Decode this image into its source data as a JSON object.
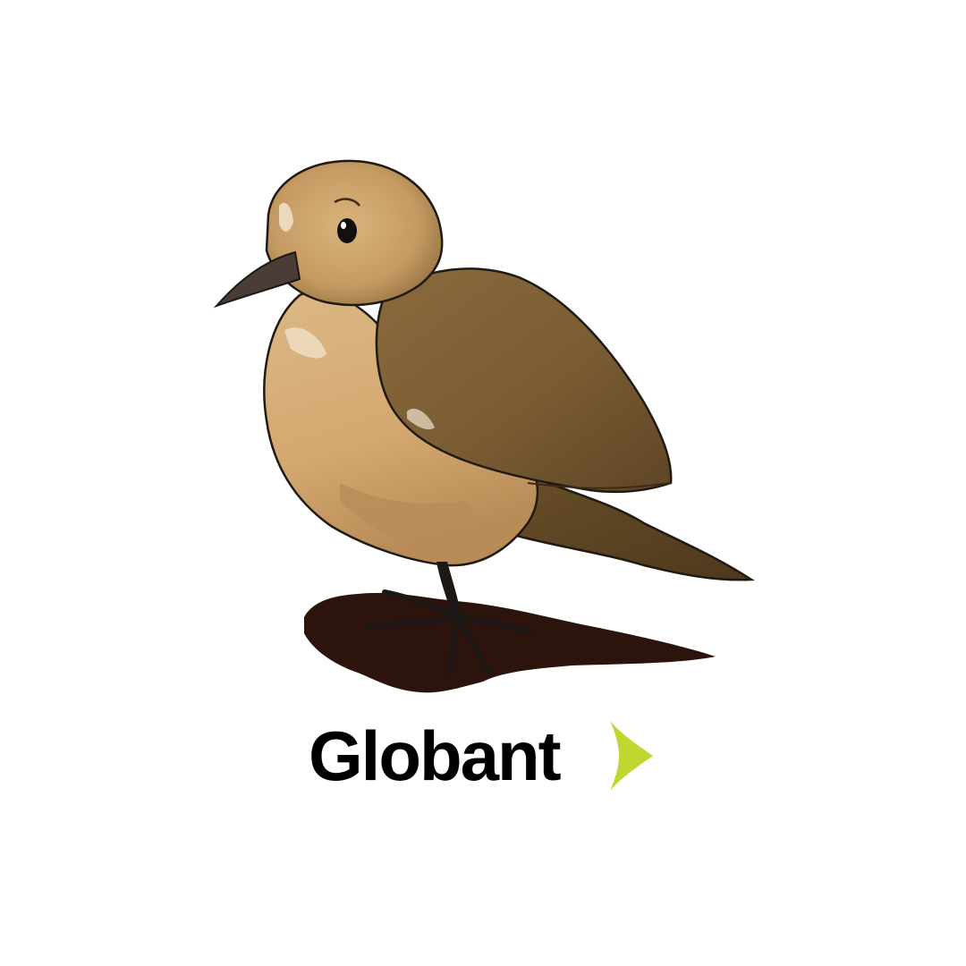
{
  "artwork": {
    "subject": "bird-illustration",
    "colors": {
      "head": "#b58d58",
      "face": "#d9b47c",
      "breast": "#d7ae76",
      "belly": "#c99a62",
      "wing": "#7f6236",
      "wing_dark": "#5e4526",
      "tail": "#5a4223",
      "beak": "#4a3c36",
      "legs": "#1c1816",
      "outline": "#1f1a14",
      "shadow": "#2c140c",
      "highlight": "#f1e3cd"
    }
  },
  "logo": {
    "brand": "Globant",
    "mark_icon": "chevron-right-icon",
    "colors": {
      "text": "#000000",
      "mark": "#bfd730"
    }
  }
}
